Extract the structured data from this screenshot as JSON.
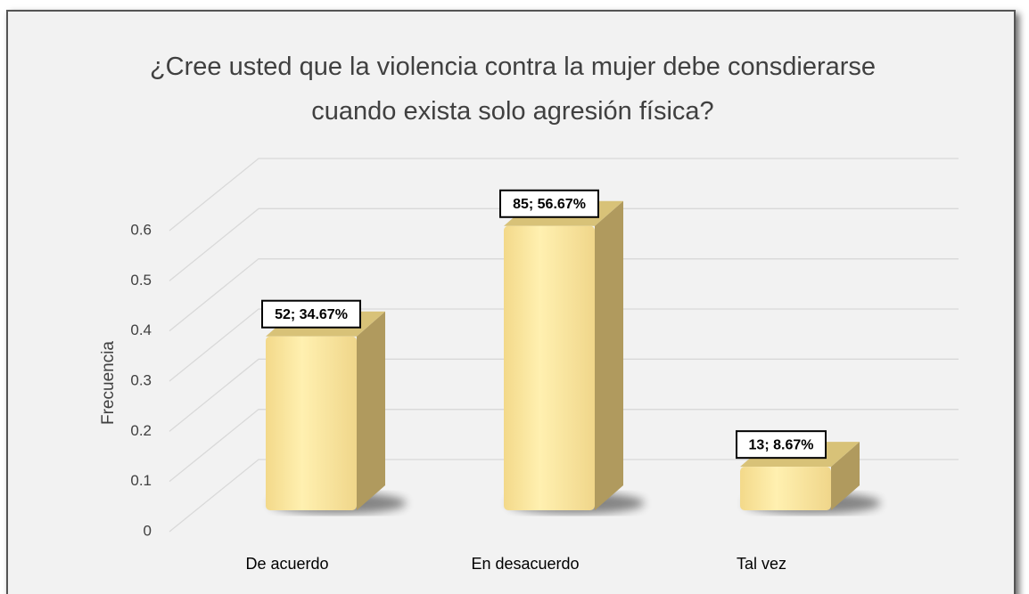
{
  "chart_data": {
    "type": "bar3d",
    "title": "¿Cree usted que la violencia contra la mujer debe consdierarse cuando exista solo agresión física?",
    "ylabel": "Frecuencia",
    "categories": [
      "De acuerdo",
      "En desacuerdo",
      "Tal vez"
    ],
    "values": [
      0.3467,
      0.5667,
      0.0867
    ],
    "value_labels": [
      "52; 34.67%",
      "85; 56.67%",
      "13; 8.67%"
    ],
    "color": "#ffe699",
    "ylim": [
      0,
      0.6
    ],
    "yticks": [
      0,
      0.1,
      0.2,
      0.3,
      0.4,
      0.5,
      0.6
    ],
    "grid": true
  }
}
